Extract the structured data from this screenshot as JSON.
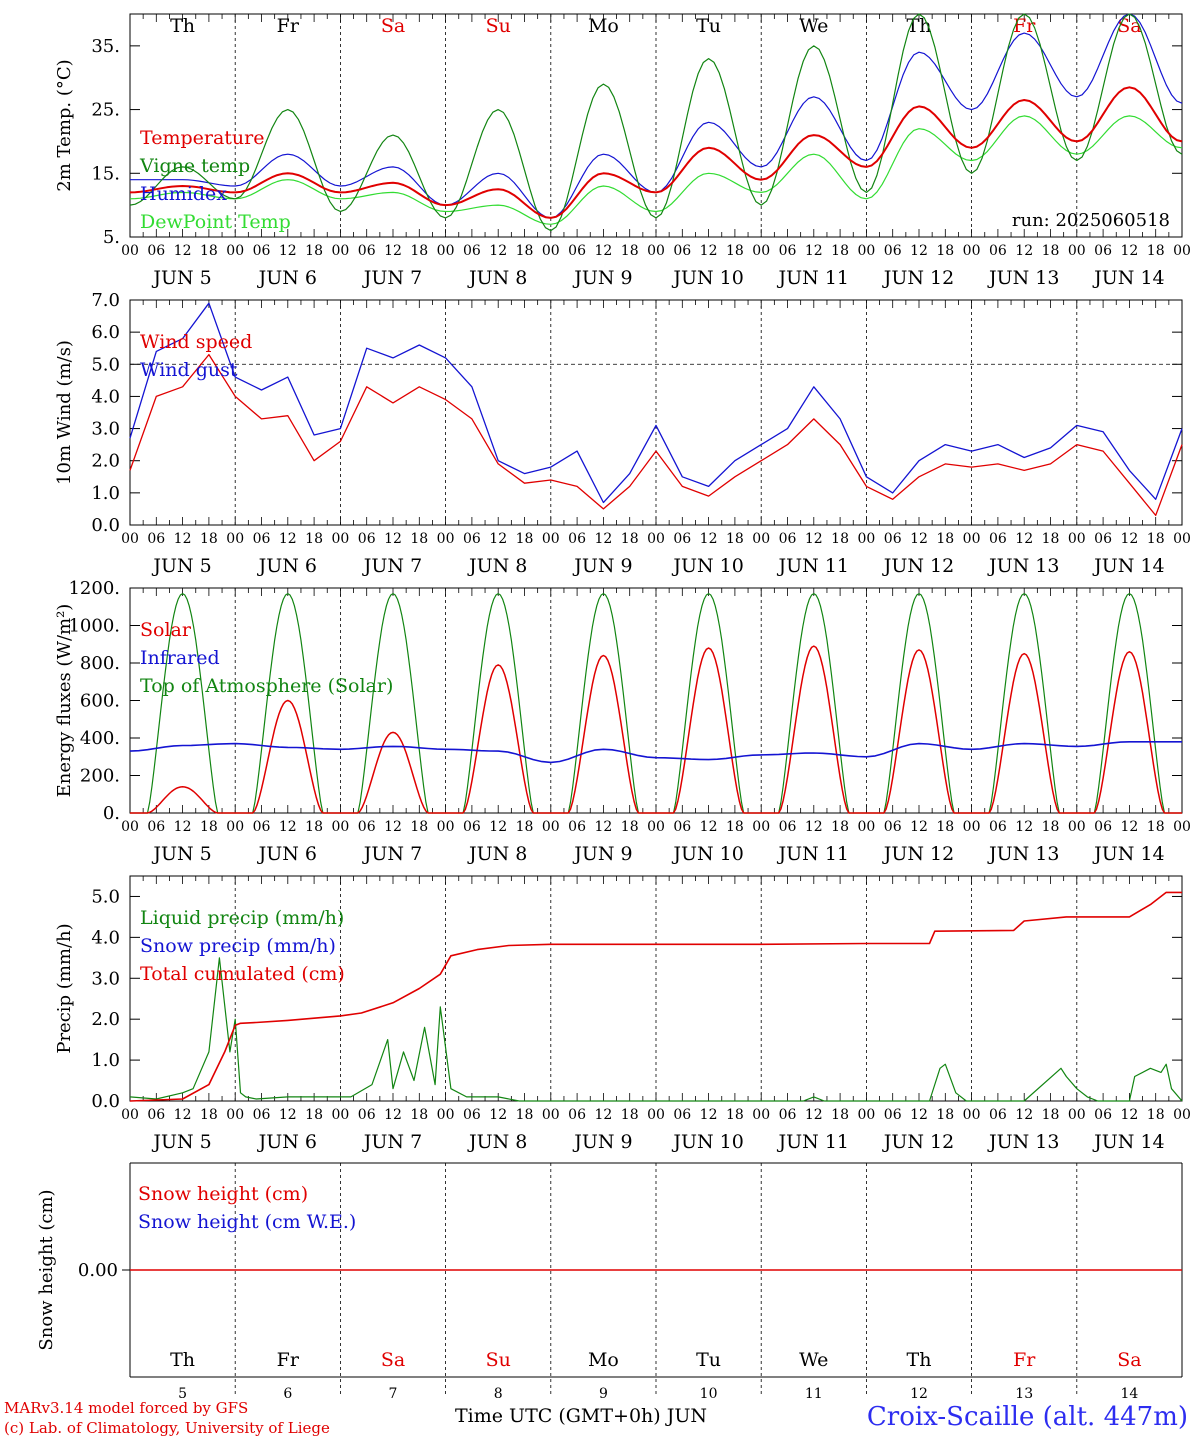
{
  "colors": {
    "red": "#e00000",
    "green": "#128512",
    "blue": "#1414d2",
    "lightgreen": "#32dc32",
    "black": "#000000",
    "station": "#2d2df0"
  },
  "day_names": [
    "Th",
    "Fr",
    "Sa",
    "Su",
    "Mo",
    "Tu",
    "We",
    "Th",
    "Fr",
    "Sa"
  ],
  "weekend_flags": [
    false,
    false,
    true,
    true,
    false,
    false,
    false,
    false,
    true,
    true
  ],
  "hour_ticks": [
    "00",
    "06",
    "12",
    "18"
  ],
  "hour_end": "00",
  "date_labels": [
    "JUN  5",
    "JUN  6",
    "JUN  7",
    "JUN  8",
    "JUN  9",
    "JUN 10",
    "JUN 11",
    "JUN 12",
    "JUN 13",
    "JUN 14"
  ],
  "day_numbers": [
    "5",
    "6",
    "7",
    "8",
    "9",
    "10",
    "11",
    "12",
    "13",
    "14"
  ],
  "footer": {
    "credit_line1": "MARv3.14 model forced by GFS",
    "credit_line2": "(c) Lab. of Climatology, University of Liege",
    "xlabel": "Time UTC (GMT+0h) JUN",
    "station": "Croix-Scaille (alt. 447m)"
  },
  "chart_data": [
    {
      "type": "line",
      "ylabel": "2m Temp. (°C)",
      "ylim": [
        5,
        40
      ],
      "yticks": [
        "5.",
        "15.",
        "25.",
        "35."
      ],
      "annotation": "run: 2025060518",
      "legend": [
        "Temperature",
        "Vigne temp",
        "Humidex",
        "DewPoint Temp"
      ],
      "x_days": [
        0,
        0.5,
        1,
        1.5,
        2,
        2.5,
        3,
        3.5,
        4,
        4.5,
        5,
        5.5,
        6,
        6.5,
        7,
        7.5,
        8,
        8.5,
        9,
        9.5,
        10
      ],
      "series": [
        {
          "name": "Temperature",
          "color": "red",
          "values": [
            12,
            13,
            12,
            15,
            12,
            13.5,
            10,
            12.5,
            8,
            15,
            12,
            19,
            14,
            21,
            16,
            25.5,
            19,
            26.5,
            20,
            28.5,
            20
          ]
        },
        {
          "name": "Vigne temp",
          "color": "green",
          "values": [
            10,
            16,
            11,
            25,
            9,
            21,
            8,
            25,
            6,
            29,
            8,
            33,
            10,
            35,
            12,
            40,
            15,
            40,
            17,
            40,
            18
          ]
        },
        {
          "name": "Humidex",
          "color": "blue",
          "values": [
            14,
            14,
            13,
            18,
            13,
            16,
            10,
            15,
            8,
            18,
            12,
            23,
            16,
            27,
            17,
            34,
            25,
            37,
            27,
            40,
            26
          ]
        },
        {
          "name": "DewPoint Temp",
          "color": "lightgreen",
          "values": [
            11,
            12,
            11,
            14,
            11,
            12,
            9,
            10,
            7,
            13,
            9,
            15,
            12,
            18,
            11,
            22,
            17,
            24,
            18,
            24,
            19
          ]
        }
      ]
    },
    {
      "type": "line",
      "ylabel": "10m Wind (m/s)",
      "ylim": [
        0,
        7
      ],
      "yticks": [
        "0.0",
        "1.0",
        "2.0",
        "3.0",
        "4.0",
        "5.0",
        "6.0",
        "7.0"
      ],
      "ref_line": 5.0,
      "legend": [
        "Wind speed",
        "Wind gust"
      ],
      "x_days": [
        0,
        0.25,
        0.5,
        0.75,
        1,
        1.25,
        1.5,
        1.75,
        2,
        2.25,
        2.5,
        2.75,
        3,
        3.25,
        3.5,
        3.75,
        4,
        4.25,
        4.5,
        4.75,
        5,
        5.25,
        5.5,
        5.75,
        6,
        6.25,
        6.5,
        6.75,
        7,
        7.25,
        7.5,
        7.75,
        8,
        8.25,
        8.5,
        8.75,
        9,
        9.25,
        9.5,
        9.75,
        10
      ],
      "series": [
        {
          "name": "Wind speed",
          "color": "red",
          "values": [
            1.7,
            4.0,
            4.3,
            5.3,
            4.0,
            3.3,
            3.4,
            2.0,
            2.6,
            4.3,
            3.8,
            4.3,
            3.9,
            3.3,
            1.9,
            1.3,
            1.4,
            1.2,
            0.5,
            1.2,
            2.3,
            1.2,
            0.9,
            1.5,
            2.0,
            2.5,
            3.3,
            2.5,
            1.2,
            0.8,
            1.5,
            1.9,
            1.8,
            1.9,
            1.7,
            1.9,
            2.5,
            2.3,
            1.3,
            0.3,
            2.5
          ]
        },
        {
          "name": "Wind gust",
          "color": "blue",
          "values": [
            2.7,
            5.4,
            5.8,
            6.9,
            4.6,
            4.2,
            4.6,
            2.8,
            3.0,
            5.5,
            5.2,
            5.6,
            5.2,
            4.3,
            2.0,
            1.6,
            1.8,
            2.3,
            0.7,
            1.6,
            3.1,
            1.5,
            1.2,
            2.0,
            2.5,
            3.0,
            4.3,
            3.3,
            1.5,
            1.0,
            2.0,
            2.5,
            2.3,
            2.5,
            2.1,
            2.4,
            3.1,
            2.9,
            1.7,
            0.8,
            3.0
          ]
        }
      ]
    },
    {
      "type": "line",
      "ylabel": "Energy fluxes (W/m²)",
      "ylim": [
        0,
        1200
      ],
      "yticks": [
        "0.",
        "200.",
        "400.",
        "600.",
        "800.",
        "1000.",
        "1200."
      ],
      "legend": [
        "Solar",
        "Infrared",
        "Top of Atmosphere (Solar)"
      ],
      "toa_peak": 1170,
      "solar_peaks": [
        140,
        600,
        430,
        790,
        840,
        880,
        890,
        870,
        850,
        860
      ],
      "infrared_x": [
        0,
        0.5,
        1,
        1.5,
        2,
        2.5,
        3,
        3.5,
        4,
        4.5,
        5,
        5.5,
        6,
        6.5,
        7,
        7.5,
        8,
        8.5,
        9,
        9.5,
        10
      ],
      "infrared_values": [
        330,
        360,
        370,
        350,
        340,
        355,
        340,
        330,
        270,
        340,
        295,
        285,
        310,
        320,
        300,
        370,
        340,
        370,
        355,
        380,
        380
      ],
      "series": [
        {
          "name": "Solar",
          "color": "red"
        },
        {
          "name": "Infrared",
          "color": "blue"
        },
        {
          "name": "Top of Atmosphere (Solar)",
          "color": "green"
        }
      ]
    },
    {
      "type": "line",
      "ylabel": "Precip (mm/h)",
      "ylim": [
        0,
        5.5
      ],
      "yticks": [
        "0.0",
        "1.0",
        "2.0",
        "3.0",
        "4.0",
        "5.0"
      ],
      "legend": [
        "Liquid precip (mm/h)",
        "Snow precip (mm/h)",
        "Total cumulated (cm)"
      ],
      "series": [
        {
          "name": "Liquid precip (mm/h)",
          "color": "green",
          "x": [
            0,
            0.25,
            0.5,
            0.6,
            0.75,
            0.85,
            0.95,
            1.0,
            1.05,
            1.1,
            1.2,
            1.5,
            2.0,
            2.1,
            2.3,
            2.45,
            2.5,
            2.6,
            2.7,
            2.8,
            2.9,
            2.95,
            3.05,
            3.2,
            3.5,
            3.7,
            4,
            5,
            6,
            6.4,
            6.5,
            6.6,
            7,
            7.6,
            7.7,
            7.75,
            7.85,
            7.95,
            8,
            8.5,
            8.85,
            8.9,
            9.0,
            9.1,
            9.2,
            9.5,
            9.55,
            9.7,
            9.8,
            9.85,
            9.9,
            10
          ],
          "values": [
            0.1,
            0.05,
            0.2,
            0.3,
            1.2,
            3.5,
            1.2,
            2.0,
            0.2,
            0.1,
            0.05,
            0.1,
            0.1,
            0.1,
            0.4,
            1.5,
            0.3,
            1.2,
            0.5,
            1.8,
            0.4,
            2.3,
            0.3,
            0.1,
            0.1,
            0.0,
            0.0,
            0.0,
            0.0,
            0.0,
            0.1,
            0.0,
            0.0,
            0.0,
            0.8,
            0.9,
            0.2,
            0.0,
            0.0,
            0.0,
            0.8,
            0.6,
            0.3,
            0.1,
            0.0,
            0.0,
            0.6,
            0.8,
            0.7,
            0.9,
            0.3,
            0.0
          ]
        },
        {
          "name": "Total cumulated (cm)",
          "color": "red",
          "x": [
            0,
            0.5,
            0.75,
            0.9,
            1.0,
            1.05,
            1.2,
            1.5,
            2.0,
            2.2,
            2.5,
            2.75,
            2.95,
            3.05,
            3.3,
            3.6,
            4,
            5,
            6,
            7,
            7.6,
            7.65,
            8.4,
            8.5,
            8.9,
            9.0,
            9.5,
            9.7,
            9.85,
            10
          ],
          "values": [
            0.0,
            0.05,
            0.4,
            1.2,
            1.85,
            1.9,
            1.92,
            1.97,
            2.08,
            2.15,
            2.4,
            2.75,
            3.1,
            3.55,
            3.7,
            3.8,
            3.83,
            3.83,
            3.83,
            3.85,
            3.85,
            4.15,
            4.17,
            4.4,
            4.5,
            4.5,
            4.5,
            4.8,
            5.1,
            5.1
          ]
        }
      ]
    },
    {
      "type": "line",
      "ylabel": "Snow height (cm)",
      "ylim": [
        -1,
        1
      ],
      "yticks": [
        "0.00"
      ],
      "legend": [
        "Snow height (cm)",
        "Snow height (cm W.E.)"
      ],
      "series": [
        {
          "name": "Snow height (cm)",
          "color": "red",
          "values": [
            0,
            0
          ]
        },
        {
          "name": "Snow height (cm W.E.)",
          "color": "blue",
          "values": [
            0,
            0
          ]
        }
      ]
    }
  ]
}
